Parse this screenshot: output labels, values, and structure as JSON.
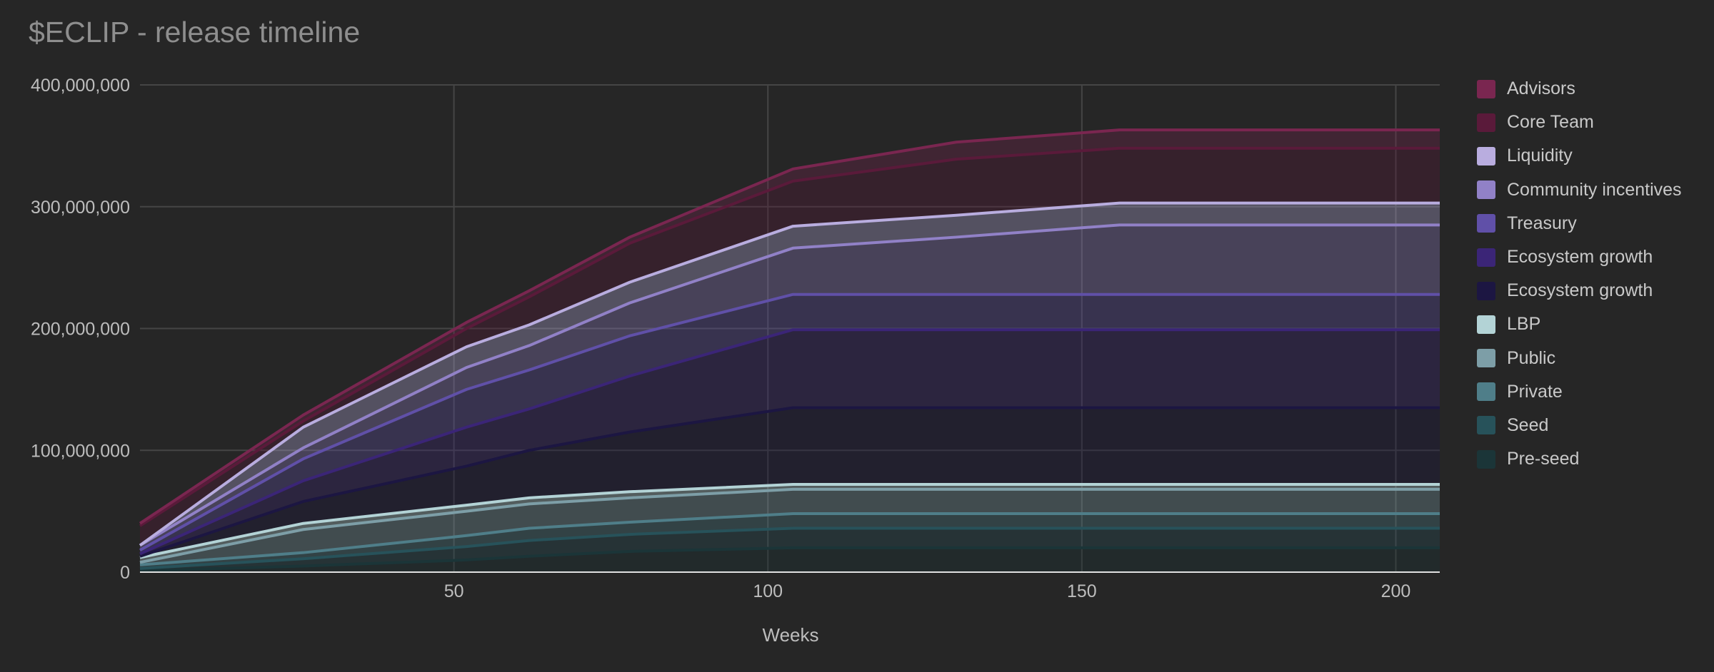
{
  "chart_data": {
    "type": "area",
    "stacked": true,
    "title": "$ECLIP - release timeline",
    "xlabel": "Weeks",
    "ylabel": "",
    "xlim": [
      0,
      207
    ],
    "ylim": [
      0,
      400000000
    ],
    "x_ticks": [
      50,
      100,
      150,
      200
    ],
    "y_ticks": [
      0,
      100000000,
      200000000,
      300000000,
      400000000
    ],
    "y_tick_labels": [
      "0",
      "100,000,000",
      "200,000,000",
      "300,000,000",
      "400,000,000"
    ],
    "grid": true,
    "legend_position": "right",
    "x": [
      0,
      26,
      52,
      62,
      78,
      104,
      130,
      156,
      207
    ],
    "series": [
      {
        "name": "Pre-seed",
        "color": "#1b3538",
        "values": [
          1000000,
          5000000,
          10000000,
          13000000,
          17000000,
          20000000,
          20000000,
          20000000,
          20000000
        ]
      },
      {
        "name": "Seed",
        "color": "#27525a",
        "values": [
          2000000,
          6000000,
          11000000,
          13000000,
          14000000,
          16000000,
          16000000,
          16000000,
          16000000
        ]
      },
      {
        "name": "Private",
        "color": "#4f7e89",
        "values": [
          3000000,
          5000000,
          9000000,
          10000000,
          10000000,
          12000000,
          12000000,
          12000000,
          12000000
        ]
      },
      {
        "name": "Public",
        "color": "#7d9ea7",
        "values": [
          2000000,
          19000000,
          20000000,
          20000000,
          20000000,
          20000000,
          20000000,
          20000000,
          20000000
        ]
      },
      {
        "name": "LBP",
        "color": "#b3d3d6",
        "values": [
          4000000,
          5000000,
          5000000,
          5000000,
          5000000,
          4000000,
          4000000,
          4000000,
          4000000
        ]
      },
      {
        "name": "Ecosystem growth",
        "color": "#1c1642",
        "values": [
          1000000,
          18000000,
          32000000,
          39000000,
          49000000,
          63000000,
          63000000,
          63000000,
          63000000
        ]
      },
      {
        "name": "Ecosystem growth",
        "color": "#3b2577",
        "values": [
          2000000,
          17000000,
          32000000,
          34000000,
          46000000,
          64000000,
          64000000,
          64000000,
          64000000
        ]
      },
      {
        "name": "Treasury",
        "color": "#6050a8",
        "values": [
          3000000,
          18000000,
          31000000,
          32000000,
          33000000,
          29000000,
          29000000,
          29000000,
          29000000
        ]
      },
      {
        "name": "Community incentives",
        "color": "#9181c7",
        "values": [
          4000000,
          9000000,
          18000000,
          20000000,
          27000000,
          38000000,
          47000000,
          57000000,
          57000000
        ]
      },
      {
        "name": "Liquidity",
        "color": "#b9addf",
        "values": [
          0,
          17000000,
          17000000,
          17000000,
          17000000,
          18000000,
          18000000,
          18000000,
          18000000
        ]
      },
      {
        "name": "Core Team",
        "color": "#5a1a3a",
        "values": [
          16000000,
          5000000,
          15000000,
          23000000,
          32000000,
          37000000,
          46000000,
          45000000,
          45000000
        ]
      },
      {
        "name": "Advisors",
        "color": "#7a2650",
        "values": [
          2000000,
          5000000,
          5000000,
          5000000,
          5000000,
          10000000,
          14000000,
          15000000,
          15000000
        ]
      }
    ]
  }
}
